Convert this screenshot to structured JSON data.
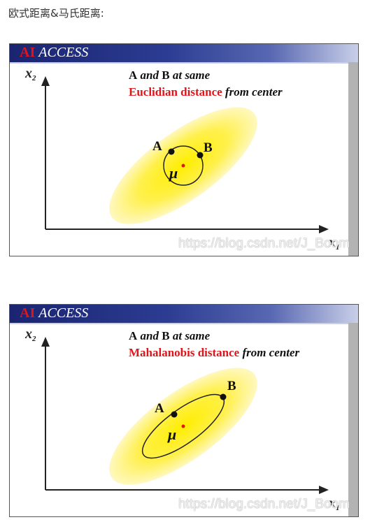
{
  "heading": "欧式距离&马氏距离:",
  "brand": {
    "ai": "AI",
    "access": "ACCESS"
  },
  "watermark": "https://blog.csdn.net/J_Boom",
  "labels": {
    "x_axis": "x",
    "x_axis_sub": "1",
    "y_axis": "x",
    "y_axis_sub": "2",
    "point_a": "A",
    "point_b": "B",
    "mu": "μ"
  },
  "slides": [
    {
      "caption_line1": {
        "a": "A",
        "and": " and ",
        "b": "B",
        "rest": " at same"
      },
      "caption_line2": {
        "metric": "Euclidian distance",
        "rest": " from center"
      }
    },
    {
      "caption_line1": {
        "a": "A",
        "and": " and ",
        "b": "B",
        "rest": " at same"
      },
      "caption_line2": {
        "metric": "Mahalanobis distance",
        "rest": " from center"
      }
    }
  ],
  "colors": {
    "accent_red": "#e0151b",
    "ellipse_center": "#ffee00",
    "ellipse_edge": "#fff8c0",
    "titlebar_dark": "#1a2470"
  }
}
